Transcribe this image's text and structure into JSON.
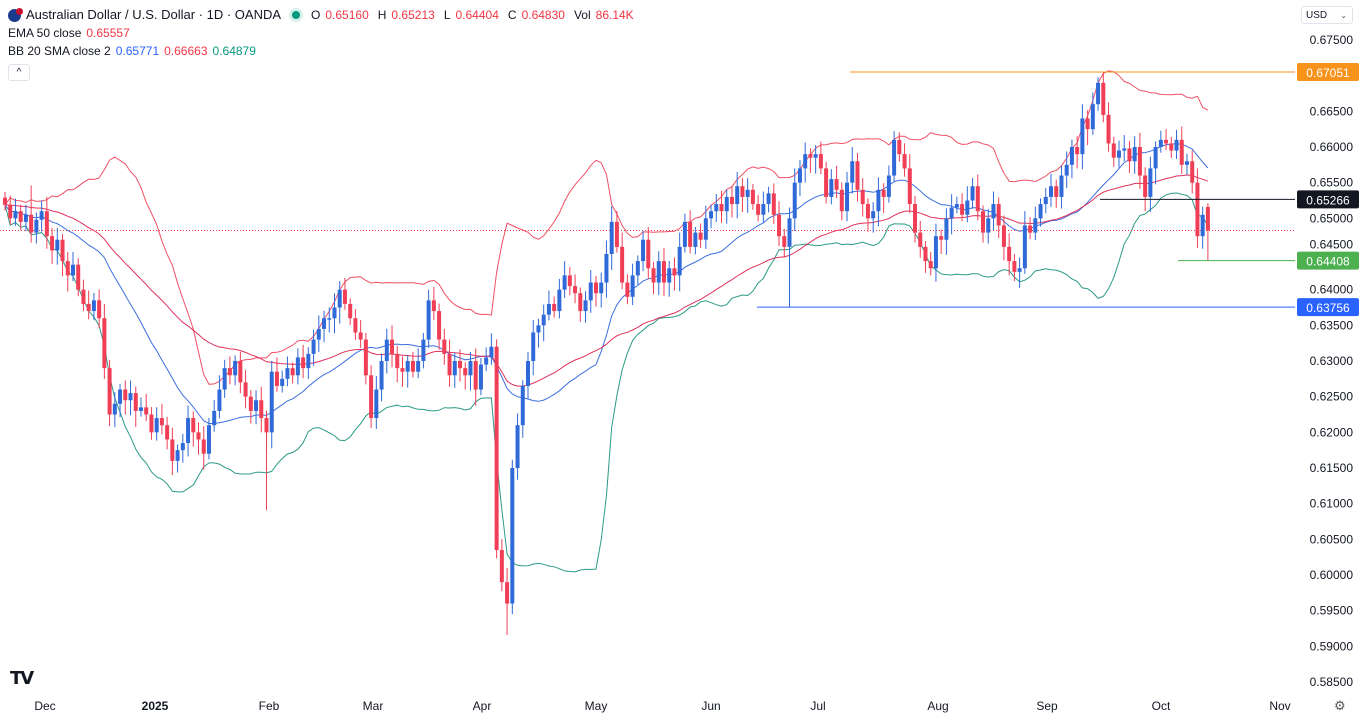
{
  "header": {
    "symbol_title": "Australian Dollar / U.S. Dollar · 1D · OANDA",
    "ohlc": {
      "o_label": "O",
      "o": "0.65160",
      "h_label": "H",
      "h": "0.65213",
      "l_label": "L",
      "l": "0.64404",
      "c_label": "C",
      "c": "0.64830",
      "vol_label": "Vol",
      "vol": "86.14K"
    },
    "ema": {
      "label": "EMA 50 close",
      "value": "0.65557"
    },
    "bb": {
      "label": "BB 20 SMA close 2",
      "basis": "0.65771",
      "upper": "0.66663",
      "lower": "0.64879"
    },
    "collapse_icon": "chevron-up-icon"
  },
  "currency_select": {
    "value": "USD"
  },
  "colors": {
    "up": "#2f6ad8",
    "down": "#ef3e55",
    "ema": "#e0315c",
    "bb_basis": "#3c6fe0",
    "bb_upper": "#ef5064",
    "bb_lower": "#2b9a86",
    "last_price": "#ef3e55"
  },
  "chart_data": {
    "type": "candlestick",
    "interval": "1D",
    "x_tick_labels": [
      "Dec",
      "2025",
      "Feb",
      "Mar",
      "Apr",
      "May",
      "Jun",
      "Jul",
      "Aug",
      "Sep",
      "Oct",
      "Nov"
    ],
    "y_tick_labels": [
      "0.67500",
      "0.66500",
      "0.66000",
      "0.65500",
      "0.65000",
      "0.64500",
      "0.64000",
      "0.63500",
      "0.63000",
      "0.62500",
      "0.62000",
      "0.61500",
      "0.61000",
      "0.60500",
      "0.60000",
      "0.59500",
      "0.59000",
      "0.58500"
    ],
    "ylim": [
      0.585,
      0.675
    ],
    "close": [
      0.6519,
      0.65,
      0.651,
      0.6495,
      0.6505,
      0.648,
      0.6498,
      0.651,
      0.6475,
      0.6455,
      0.647,
      0.644,
      0.642,
      0.6435,
      0.64,
      0.638,
      0.637,
      0.6385,
      0.636,
      0.629,
      0.6225,
      0.624,
      0.626,
      0.6245,
      0.6255,
      0.623,
      0.6235,
      0.6225,
      0.62,
      0.622,
      0.621,
      0.619,
      0.616,
      0.6175,
      0.6185,
      0.622,
      0.62,
      0.619,
      0.617,
      0.621,
      0.623,
      0.626,
      0.629,
      0.628,
      0.63,
      0.627,
      0.625,
      0.623,
      0.6245,
      0.622,
      0.62,
      0.6285,
      0.6265,
      0.6275,
      0.629,
      0.628,
      0.6305,
      0.629,
      0.631,
      0.633,
      0.6345,
      0.636,
      0.636,
      0.6375,
      0.64,
      0.638,
      0.636,
      0.634,
      0.633,
      0.628,
      0.622,
      0.626,
      0.63,
      0.633,
      0.631,
      0.629,
      0.6285,
      0.63,
      0.6285,
      0.63,
      0.633,
      0.6385,
      0.637,
      0.633,
      0.631,
      0.628,
      0.63,
      0.629,
      0.628,
      0.63,
      0.626,
      0.6295,
      0.6305,
      0.632,
      0.6035,
      0.599,
      0.596,
      0.615,
      0.621,
      0.6265,
      0.63,
      0.634,
      0.635,
      0.6365,
      0.638,
      0.637,
      0.64,
      0.642,
      0.6405,
      0.6395,
      0.637,
      0.6385,
      0.641,
      0.6395,
      0.641,
      0.645,
      0.6495,
      0.646,
      0.641,
      0.639,
      0.642,
      0.644,
      0.647,
      0.643,
      0.641,
      0.644,
      0.641,
      0.643,
      0.642,
      0.646,
      0.6495,
      0.646,
      0.648,
      0.647,
      0.65,
      0.651,
      0.652,
      0.651,
      0.653,
      0.652,
      0.6545,
      0.653,
      0.654,
      0.652,
      0.6505,
      0.652,
      0.6535,
      0.6505,
      0.6475,
      0.646,
      0.65,
      0.655,
      0.657,
      0.659,
      0.6585,
      0.659,
      0.657,
      0.653,
      0.6555,
      0.654,
      0.651,
      0.655,
      0.658,
      0.654,
      0.652,
      0.65,
      0.651,
      0.654,
      0.653,
      0.656,
      0.661,
      0.659,
      0.657,
      0.652,
      0.648,
      0.646,
      0.644,
      0.643,
      0.6475,
      0.647,
      0.65,
      0.6515,
      0.652,
      0.6505,
      0.6525,
      0.6545,
      0.651,
      0.648,
      0.65,
      0.652,
      0.649,
      0.646,
      0.644,
      0.6425,
      0.643,
      0.649,
      0.648,
      0.65,
      0.652,
      0.653,
      0.6545,
      0.653,
      0.656,
      0.6575,
      0.66,
      0.659,
      0.664,
      0.6625,
      0.666,
      0.669,
      0.6645,
      0.6605,
      0.6585,
      0.6595,
      0.6598,
      0.658,
      0.66,
      0.656,
      0.653,
      0.657,
      0.66,
      0.661,
      0.6605,
      0.6595,
      0.661,
      0.6575,
      0.658,
      0.655,
      0.6475,
      0.6505,
      0.6483
    ],
    "last_candle": {
      "open": 0.6516,
      "high": 0.65213,
      "low": 0.64404,
      "close": 0.6483
    },
    "notable_highs": {
      "5": 0.6546,
      "64": 0.6412,
      "81": 0.64,
      "116": 0.6517,
      "170": 0.6622,
      "210": 0.67051,
      "222": 0.6625
    },
    "notable_lows": {
      "32": 0.614,
      "50": 0.6091,
      "96": 0.5916,
      "150": 0.63756,
      "177": 0.642,
      "193": 0.6412
    },
    "indicators": [
      {
        "name": "EMA 50 close",
        "period": 50
      },
      {
        "name": "BB 20 SMA close 2",
        "period": 20,
        "stddev": 2
      }
    ],
    "horizontal_levels": [
      {
        "value": 0.67051,
        "label": "0.67051",
        "color": "#f7931a"
      },
      {
        "value": 0.65266,
        "label": "0.65266",
        "color": "#131722"
      },
      {
        "value": 0.64408,
        "label": "0.64408",
        "color": "#4caf50"
      },
      {
        "value": 0.63756,
        "label": "0.63756",
        "color": "#2962ff"
      }
    ],
    "last_price": 0.6483
  }
}
